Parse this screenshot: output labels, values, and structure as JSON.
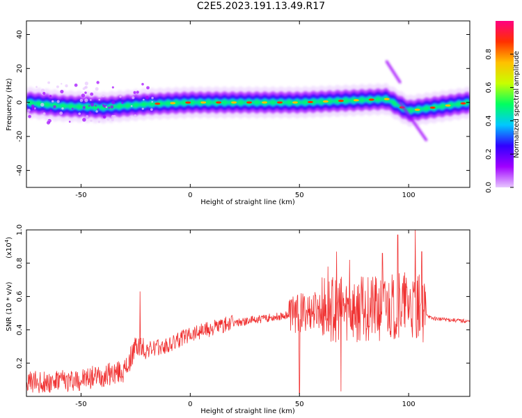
{
  "title": "C2E5.2023.191.13.49.R17",
  "chart_data": [
    {
      "type": "heatmap",
      "xlabel": "Height of straight line (km)",
      "ylabel": "Frequency (Hz)",
      "xlim": [
        -75,
        128
      ],
      "ylim": [
        -50,
        48
      ],
      "xticks": [
        -50,
        0,
        50,
        100
      ],
      "yticks": [
        -40,
        -20,
        0,
        20,
        40
      ],
      "colorbar": {
        "label": "Normalized spectral amplitude",
        "range": [
          0.0,
          1.0
        ],
        "ticks": [
          "0.0",
          "0.2",
          "0.4",
          "0.6",
          "0.8"
        ],
        "colormap": [
          "#e8c8ff",
          "#a000ff",
          "#3000ff",
          "#00c8ff",
          "#00ff60",
          "#c8ff00",
          "#ffc000",
          "#ff3000",
          "#ff0080"
        ]
      },
      "ridge": [
        {
          "x": -75,
          "y": 0
        },
        {
          "x": -60,
          "y": -2
        },
        {
          "x": -40,
          "y": -3
        },
        {
          "x": -20,
          "y": -1
        },
        {
          "x": 0,
          "y": 0
        },
        {
          "x": 50,
          "y": 0
        },
        {
          "x": 90,
          "y": 2
        },
        {
          "x": 100,
          "y": -5
        },
        {
          "x": 128,
          "y": 0
        }
      ],
      "side_bands": [
        {
          "x": [
            90,
            96
          ],
          "y": [
            24,
            12
          ]
        },
        {
          "x": [
            96,
            108
          ],
          "y": [
            0,
            -22
          ]
        },
        {
          "x": [
            -33,
            -30
          ],
          "y": [
            10,
            10
          ]
        }
      ]
    },
    {
      "type": "line",
      "xlabel": "Height of straight line (km)",
      "ylabel": "SNR (10 * v/v)",
      "multiplier": "(x10",
      "multiplier_exp": "4",
      "xlim": [
        -75,
        128
      ],
      "ylim": [
        0,
        1.0
      ],
      "xticks": [
        -50,
        0,
        50,
        100
      ],
      "yticks": [
        "0.2",
        "0.4",
        "0.6",
        "0.8",
        "1.0"
      ],
      "color": "#f03030",
      "envelope": [
        {
          "x": -75,
          "y": 0.08
        },
        {
          "x": -50,
          "y": 0.1
        },
        {
          "x": -30,
          "y": 0.15
        },
        {
          "x": -25,
          "y": 0.3
        },
        {
          "x": -20,
          "y": 0.28
        },
        {
          "x": -10,
          "y": 0.3
        },
        {
          "x": 0,
          "y": 0.38
        },
        {
          "x": 20,
          "y": 0.44
        },
        {
          "x": 30,
          "y": 0.46
        },
        {
          "x": 40,
          "y": 0.48
        },
        {
          "x": 48,
          "y": 0.5
        },
        {
          "x": 60,
          "y": 0.52
        },
        {
          "x": 80,
          "y": 0.52
        },
        {
          "x": 100,
          "y": 0.55
        },
        {
          "x": 105,
          "y": 0.55
        },
        {
          "x": 110,
          "y": 0.47
        },
        {
          "x": 128,
          "y": 0.45
        }
      ],
      "peaks": [
        {
          "x": -23,
          "y": 0.63
        },
        {
          "x": 47,
          "y": 0.6
        },
        {
          "x": 50,
          "y": 0.02
        },
        {
          "x": 63,
          "y": 0.78
        },
        {
          "x": 67,
          "y": 0.87
        },
        {
          "x": 69,
          "y": 0.03
        },
        {
          "x": 73,
          "y": 0.82
        },
        {
          "x": 88,
          "y": 0.86
        },
        {
          "x": 95,
          "y": 0.97
        },
        {
          "x": 103,
          "y": 1.0
        },
        {
          "x": 106,
          "y": 0.87
        }
      ]
    }
  ]
}
